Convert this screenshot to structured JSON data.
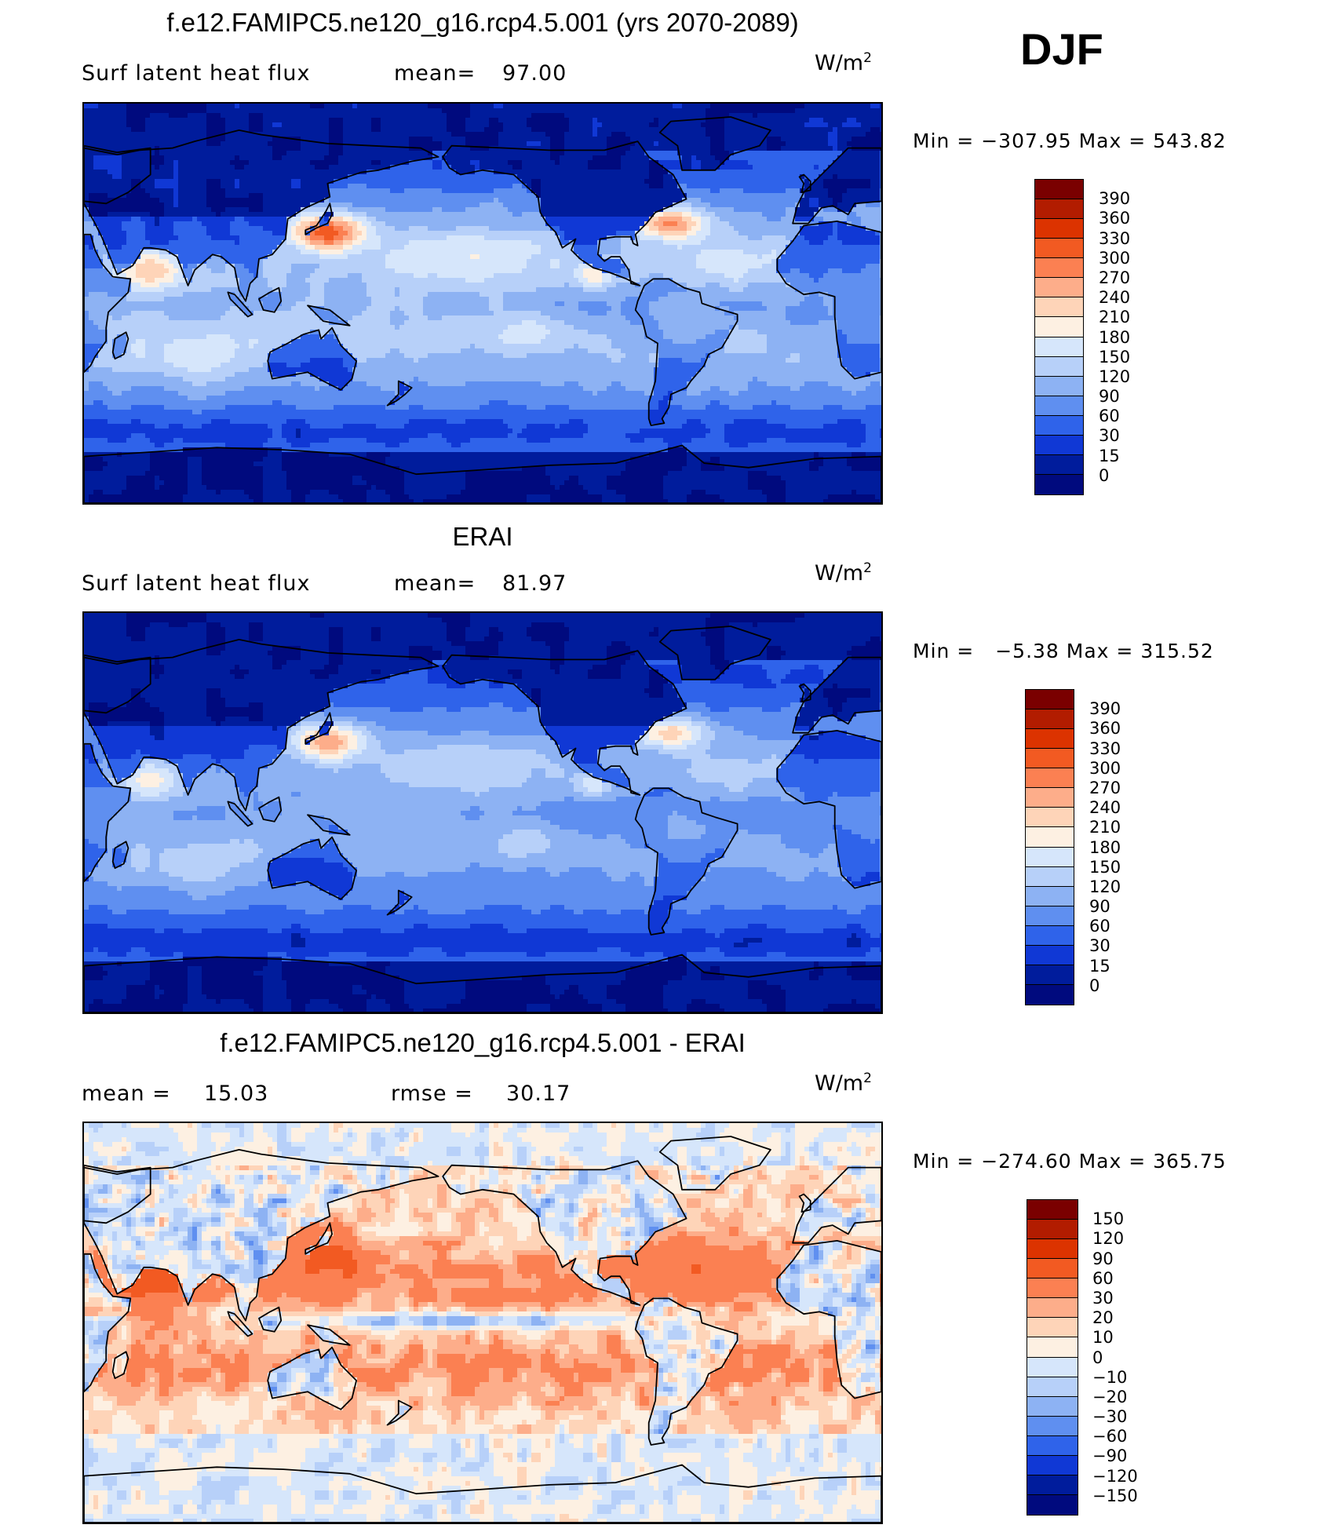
{
  "season": "DJF",
  "panels": [
    {
      "id": "model",
      "title": "f.e12.FAMIPC5.ne120_g16.rcp4.5.001 (yrs 2070-2089)",
      "field_label": "Surf latent heat flux",
      "stat1_label": "mean=",
      "stat1_value": "97.00",
      "stat2_label": "",
      "stat2_value": "",
      "unit": "W/m",
      "unit_power": "2",
      "min_label": "Min =",
      "min_value": "−307.95",
      "max_label": "Max =",
      "max_value": "543.82",
      "colorbar_ticks": [
        "390",
        "360",
        "330",
        "300",
        "270",
        "240",
        "210",
        "180",
        "150",
        "120",
        "90",
        "60",
        "30",
        "15",
        "0"
      ],
      "style": "abs"
    },
    {
      "id": "obs",
      "title": "ERAI",
      "field_label": "Surf latent heat flux",
      "stat1_label": "mean=",
      "stat1_value": "81.97",
      "stat2_label": "",
      "stat2_value": "",
      "unit": "W/m",
      "unit_power": "2",
      "min_label": "Min =",
      "min_value": "−5.38",
      "max_label": "Max =",
      "max_value": "315.52",
      "colorbar_ticks": [
        "390",
        "360",
        "330",
        "300",
        "270",
        "240",
        "210",
        "180",
        "150",
        "120",
        "90",
        "60",
        "30",
        "15",
        "0"
      ],
      "style": "obs"
    },
    {
      "id": "diff",
      "title": "f.e12.FAMIPC5.ne120_g16.rcp4.5.001 - ERAI",
      "field_label": "",
      "stat1_label": "mean =",
      "stat1_value": "15.03",
      "stat2_label": "rmse =",
      "stat2_value": "30.17",
      "unit": "W/m",
      "unit_power": "2",
      "min_label": "Min =",
      "min_value": "−274.60",
      "max_label": "Max =",
      "max_value": "365.75",
      "colorbar_ticks": [
        "150",
        "120",
        "90",
        "60",
        "30",
        "20",
        "10",
        "0",
        "−10",
        "−20",
        "−30",
        "−60",
        "−90",
        "−120",
        "−150"
      ],
      "style": "diff"
    }
  ],
  "colors": {
    "abs": [
      "#7a0000",
      "#b21c00",
      "#dc3300",
      "#f25a22",
      "#fb8052",
      "#fdad8a",
      "#fed4b8",
      "#fdf0e2",
      "#d6e6fb",
      "#b7d0f9",
      "#8db2f3",
      "#5f8ff0",
      "#2f63ea",
      "#1038d5",
      "#001c9c",
      "#000a7e"
    ],
    "diff": [
      "#7a0000",
      "#b21c00",
      "#dc3300",
      "#f25a22",
      "#fb8052",
      "#fdad8a",
      "#fed4b8",
      "#fdf0e2",
      "#d6e6fb",
      "#b7d0f9",
      "#8db2f3",
      "#5f8ff0",
      "#2f63ea",
      "#1038d5",
      "#001c9c",
      "#000a7e"
    ]
  }
}
